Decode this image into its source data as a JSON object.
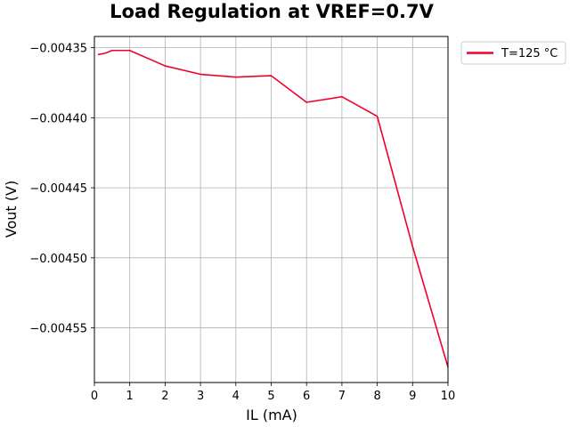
{
  "chart_data": {
    "type": "line",
    "title": "Load Regulation at VREF=0.7V",
    "xlabel": "IL (mA)",
    "ylabel": "Vout (V)",
    "xlim": [
      0,
      10
    ],
    "ylim": [
      -0.004589,
      -0.004342
    ],
    "xticks": [
      0,
      1,
      2,
      3,
      4,
      5,
      6,
      7,
      8,
      9,
      10
    ],
    "xtick_labels": [
      "0",
      "1",
      "2",
      "3",
      "4",
      "5",
      "6",
      "7",
      "8",
      "9",
      "10"
    ],
    "yticks": [
      -0.00435,
      -0.0044,
      -0.00445,
      -0.0045,
      -0.00455
    ],
    "ytick_labels": [
      "−0.00435",
      "−0.00440",
      "−0.00445",
      "−0.00450",
      "−0.00455"
    ],
    "grid": true,
    "legend_position": "outside-top-right",
    "series": [
      {
        "name": "T=125 °C",
        "color": "#f0002a",
        "x": [
          0.1,
          0.3,
          0.5,
          1,
          2,
          3,
          4,
          5,
          6,
          7,
          8,
          9,
          10
        ],
        "y": [
          -0.004355,
          -0.004354,
          -0.004352,
          -0.004352,
          -0.004363,
          -0.004369,
          -0.004371,
          -0.00437,
          -0.004389,
          -0.004385,
          -0.004399,
          -0.004492,
          -0.004578
        ]
      }
    ]
  }
}
